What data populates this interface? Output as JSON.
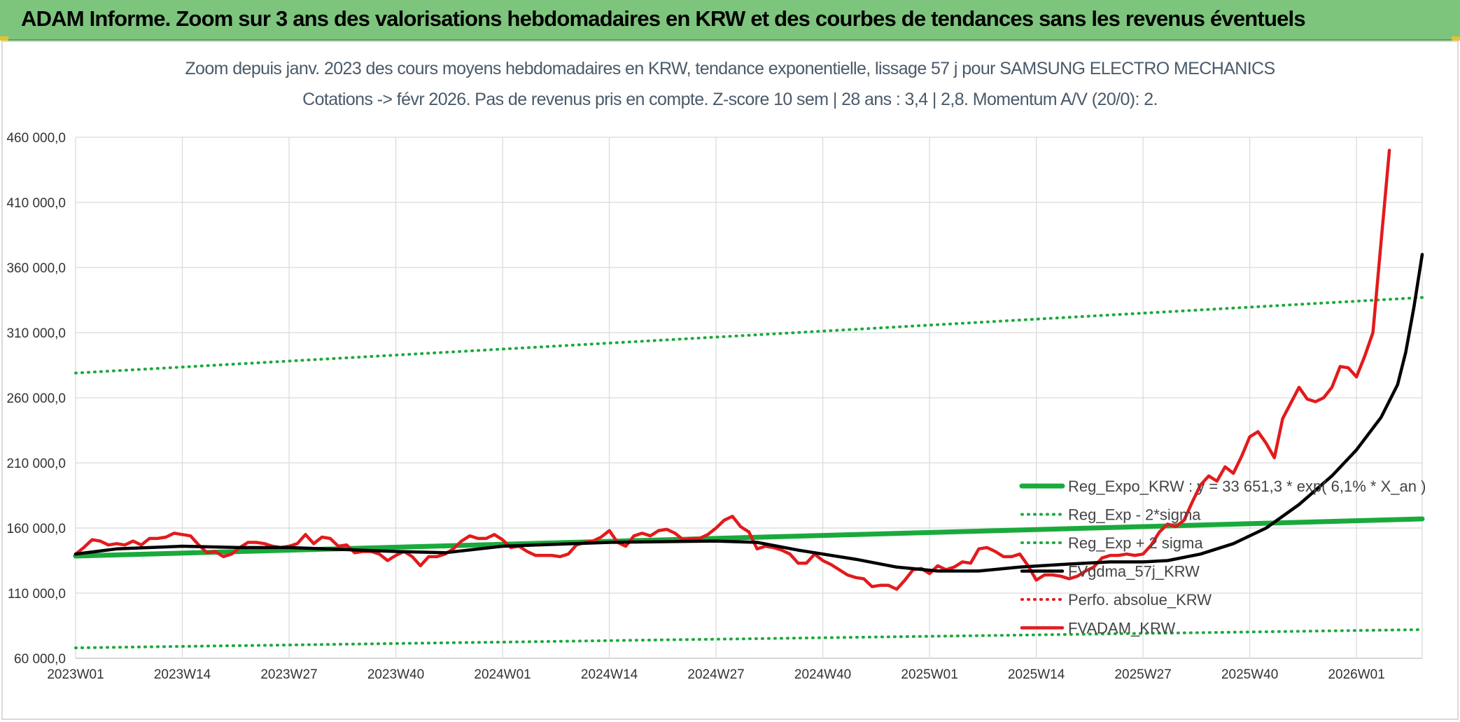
{
  "header": {
    "title": "ADAM Informe. Zoom sur 3 ans des valorisations hebdomadaires en KRW et des courbes de tendances sans les revenus éventuels"
  },
  "chart_data": {
    "type": "line",
    "title_line1": "Zoom depuis janv. 2023 des cours moyens hebdomadaires en KRW, tendance exponentielle, lissage 57 j pour SAMSUNG ELECTRO MECHANICS",
    "title_line2": "Cotations -> févr 2026. Pas de revenus pris en compte. Z-score 10 sem | 28 ans : 3,4 | 2,8. Momentum A/V (20/0): 2.",
    "ylim": [
      60000,
      460000
    ],
    "yticks": [
      "60 000,0",
      "110 000,0",
      "160 000,0",
      "210 000,0",
      "260 000,0",
      "310 000,0",
      "360 000,0",
      "410 000,0",
      "460 000,0"
    ],
    "xticks": [
      "2023W01",
      "2023W14",
      "2023W27",
      "2023W40",
      "2024W01",
      "2024W14",
      "2024W27",
      "2024W40",
      "2025W01",
      "2025W14",
      "2025W27",
      "2025W40",
      "2026W01"
    ],
    "x_start": "2023W01",
    "x_end": "2026W08",
    "grid": true,
    "legend_position": "right",
    "series": [
      {
        "name": "Reg_Expo_KRW : y = 33 651,3 * exp( 6,1% *  X_an )",
        "color": "#1aaa3c",
        "style": "thick",
        "points": [
          [
            0,
            138500
          ],
          [
            164,
            167000
          ]
        ]
      },
      {
        "name": "Reg_Exp - 2*sigma",
        "color": "#1aaa3c",
        "style": "dotted",
        "points": [
          [
            0,
            68000
          ],
          [
            164,
            82000
          ]
        ]
      },
      {
        "name": "Reg_Exp + 2 sigma",
        "color": "#1aaa3c",
        "style": "dotted",
        "points": [
          [
            0,
            279000
          ],
          [
            164,
            337000
          ]
        ]
      },
      {
        "name": "FVgdma_57j_KRW",
        "color": "#000000",
        "style": "solid",
        "points": [
          [
            0,
            140000
          ],
          [
            5,
            144000
          ],
          [
            13,
            146000
          ],
          [
            20,
            145000
          ],
          [
            26,
            145000
          ],
          [
            39,
            142000
          ],
          [
            45,
            141000
          ],
          [
            52,
            146000
          ],
          [
            65,
            149000
          ],
          [
            78,
            150000
          ],
          [
            83,
            149000
          ],
          [
            88,
            143000
          ],
          [
            95,
            136000
          ],
          [
            100,
            130000
          ],
          [
            105,
            127000
          ],
          [
            110,
            127000
          ],
          [
            115,
            130000
          ],
          [
            120,
            132000
          ],
          [
            126,
            134000
          ],
          [
            130,
            134000
          ],
          [
            133,
            135000
          ],
          [
            137,
            140000
          ],
          [
            141,
            148000
          ],
          [
            145,
            160000
          ],
          [
            149,
            178000
          ],
          [
            153,
            200000
          ],
          [
            156,
            220000
          ],
          [
            159,
            245000
          ],
          [
            161,
            270000
          ],
          [
            162,
            295000
          ],
          [
            163,
            330000
          ],
          [
            164,
            370000
          ]
        ]
      },
      {
        "name": "Perfo. absolue_KRW",
        "color": "#e31a1c",
        "style": "dotted",
        "points": []
      },
      {
        "name": "FVADAM_KRW",
        "color": "#e31a1c",
        "style": "solid",
        "points": [
          [
            0,
            140000
          ],
          [
            1,
            145000
          ],
          [
            2,
            151000
          ],
          [
            3,
            150000
          ],
          [
            4,
            147000
          ],
          [
            5,
            148000
          ],
          [
            6,
            147000
          ],
          [
            7,
            150000
          ],
          [
            8,
            147000
          ],
          [
            9,
            152000
          ],
          [
            10,
            152000
          ],
          [
            11,
            153000
          ],
          [
            12,
            156000
          ],
          [
            13,
            155000
          ],
          [
            14,
            154000
          ],
          [
            15,
            147000
          ],
          [
            16,
            141000
          ],
          [
            17,
            142000
          ],
          [
            18,
            138000
          ],
          [
            19,
            140000
          ],
          [
            20,
            145000
          ],
          [
            21,
            149000
          ],
          [
            22,
            149000
          ],
          [
            23,
            148000
          ],
          [
            24,
            146000
          ],
          [
            25,
            145000
          ],
          [
            26,
            146000
          ],
          [
            27,
            148000
          ],
          [
            28,
            155000
          ],
          [
            29,
            148000
          ],
          [
            30,
            153000
          ],
          [
            31,
            152000
          ],
          [
            32,
            146000
          ],
          [
            33,
            147000
          ],
          [
            34,
            141000
          ],
          [
            35,
            142000
          ],
          [
            36,
            142000
          ],
          [
            37,
            140000
          ],
          [
            38,
            135000
          ],
          [
            39,
            139000
          ],
          [
            40,
            142000
          ],
          [
            41,
            138000
          ],
          [
            42,
            131000
          ],
          [
            43,
            138000
          ],
          [
            44,
            138000
          ],
          [
            45,
            140000
          ],
          [
            46,
            144000
          ],
          [
            47,
            150000
          ],
          [
            48,
            154000
          ],
          [
            49,
            152000
          ],
          [
            50,
            152000
          ],
          [
            51,
            155000
          ],
          [
            52,
            151000
          ],
          [
            53,
            145000
          ],
          [
            54,
            146000
          ],
          [
            55,
            142000
          ],
          [
            56,
            139000
          ],
          [
            57,
            139000
          ],
          [
            58,
            139000
          ],
          [
            59,
            138000
          ],
          [
            60,
            140000
          ],
          [
            61,
            147000
          ],
          [
            62,
            149000
          ],
          [
            63,
            150000
          ],
          [
            64,
            153000
          ],
          [
            65,
            158000
          ],
          [
            66,
            149000
          ],
          [
            67,
            146000
          ],
          [
            68,
            154000
          ],
          [
            69,
            156000
          ],
          [
            70,
            154000
          ],
          [
            71,
            158000
          ],
          [
            72,
            159000
          ],
          [
            73,
            156000
          ],
          [
            74,
            151000
          ],
          [
            75,
            152000
          ],
          [
            76,
            152000
          ],
          [
            77,
            155000
          ],
          [
            78,
            160000
          ],
          [
            79,
            166000
          ],
          [
            80,
            169000
          ],
          [
            81,
            161000
          ],
          [
            82,
            157000
          ],
          [
            83,
            144000
          ],
          [
            84,
            146000
          ],
          [
            85,
            145000
          ],
          [
            86,
            143000
          ],
          [
            87,
            140000
          ],
          [
            88,
            133000
          ],
          [
            89,
            133000
          ],
          [
            90,
            140000
          ],
          [
            91,
            135000
          ],
          [
            92,
            132000
          ],
          [
            93,
            128000
          ],
          [
            94,
            124000
          ],
          [
            95,
            122000
          ],
          [
            96,
            121000
          ],
          [
            97,
            115000
          ],
          [
            98,
            116000
          ],
          [
            99,
            116000
          ],
          [
            100,
            113000
          ],
          [
            101,
            120000
          ],
          [
            102,
            128000
          ],
          [
            103,
            129000
          ],
          [
            104,
            125000
          ],
          [
            105,
            131000
          ],
          [
            106,
            128000
          ],
          [
            107,
            130000
          ],
          [
            108,
            134000
          ],
          [
            109,
            133000
          ],
          [
            110,
            144000
          ],
          [
            111,
            145000
          ],
          [
            112,
            142000
          ],
          [
            113,
            138000
          ],
          [
            114,
            138000
          ],
          [
            115,
            140000
          ],
          [
            116,
            131000
          ],
          [
            117,
            120000
          ],
          [
            118,
            124000
          ],
          [
            119,
            124000
          ],
          [
            120,
            123000
          ],
          [
            121,
            121000
          ],
          [
            122,
            123000
          ],
          [
            123,
            127000
          ],
          [
            124,
            130000
          ],
          [
            125,
            137000
          ],
          [
            126,
            139000
          ],
          [
            127,
            139000
          ],
          [
            128,
            140000
          ],
          [
            129,
            139000
          ],
          [
            130,
            140000
          ],
          [
            131,
            147000
          ],
          [
            132,
            157000
          ],
          [
            133,
            163000
          ],
          [
            134,
            161000
          ],
          [
            135,
            166000
          ],
          [
            136,
            180000
          ],
          [
            137,
            193000
          ],
          [
            138,
            200000
          ],
          [
            139,
            196000
          ],
          [
            140,
            207000
          ],
          [
            141,
            202000
          ],
          [
            142,
            215000
          ],
          [
            143,
            230000
          ],
          [
            144,
            234000
          ],
          [
            145,
            225000
          ],
          [
            146,
            214000
          ],
          [
            147,
            244000
          ],
          [
            148,
            256000
          ],
          [
            149,
            268000
          ],
          [
            150,
            259000
          ],
          [
            151,
            257000
          ],
          [
            152,
            260000
          ],
          [
            153,
            268000
          ],
          [
            154,
            284000
          ],
          [
            155,
            283000
          ],
          [
            156,
            276000
          ],
          [
            157,
            292000
          ],
          [
            158,
            310000
          ],
          [
            159,
            380000
          ],
          [
            160,
            450000
          ]
        ]
      }
    ]
  }
}
